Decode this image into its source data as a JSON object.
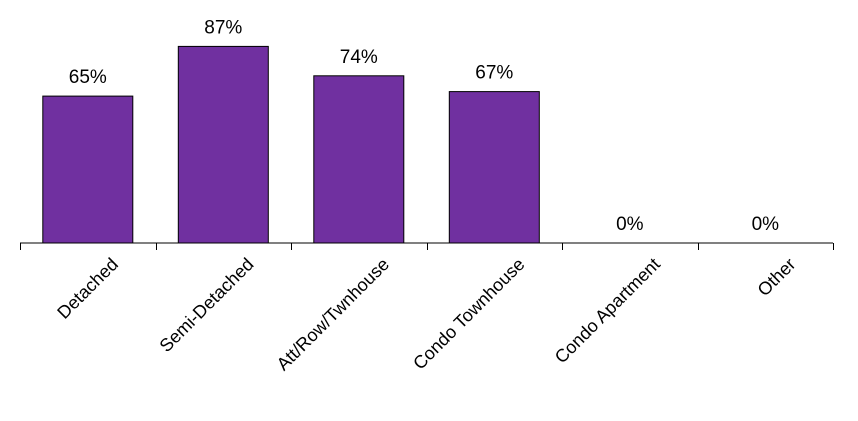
{
  "colors": {
    "bar_fill": "#7030A0",
    "bar_stroke": "#000000",
    "axis": "#000000",
    "text": "#000000"
  },
  "chart_data": {
    "type": "bar",
    "title": "",
    "xlabel": "",
    "ylabel": "",
    "categories": [
      "Detached",
      "Semi-Detached",
      "Att/Row/Twnhouse",
      "Condo Townhouse",
      "Condo Apartment",
      "Other"
    ],
    "values": [
      65,
      87,
      74,
      67,
      0,
      0
    ],
    "data_labels": [
      "65%",
      "87%",
      "74%",
      "67%",
      "0%",
      "0%"
    ],
    "unit": "%",
    "ylim": [
      0,
      100
    ],
    "grid": false,
    "legend": "none"
  }
}
